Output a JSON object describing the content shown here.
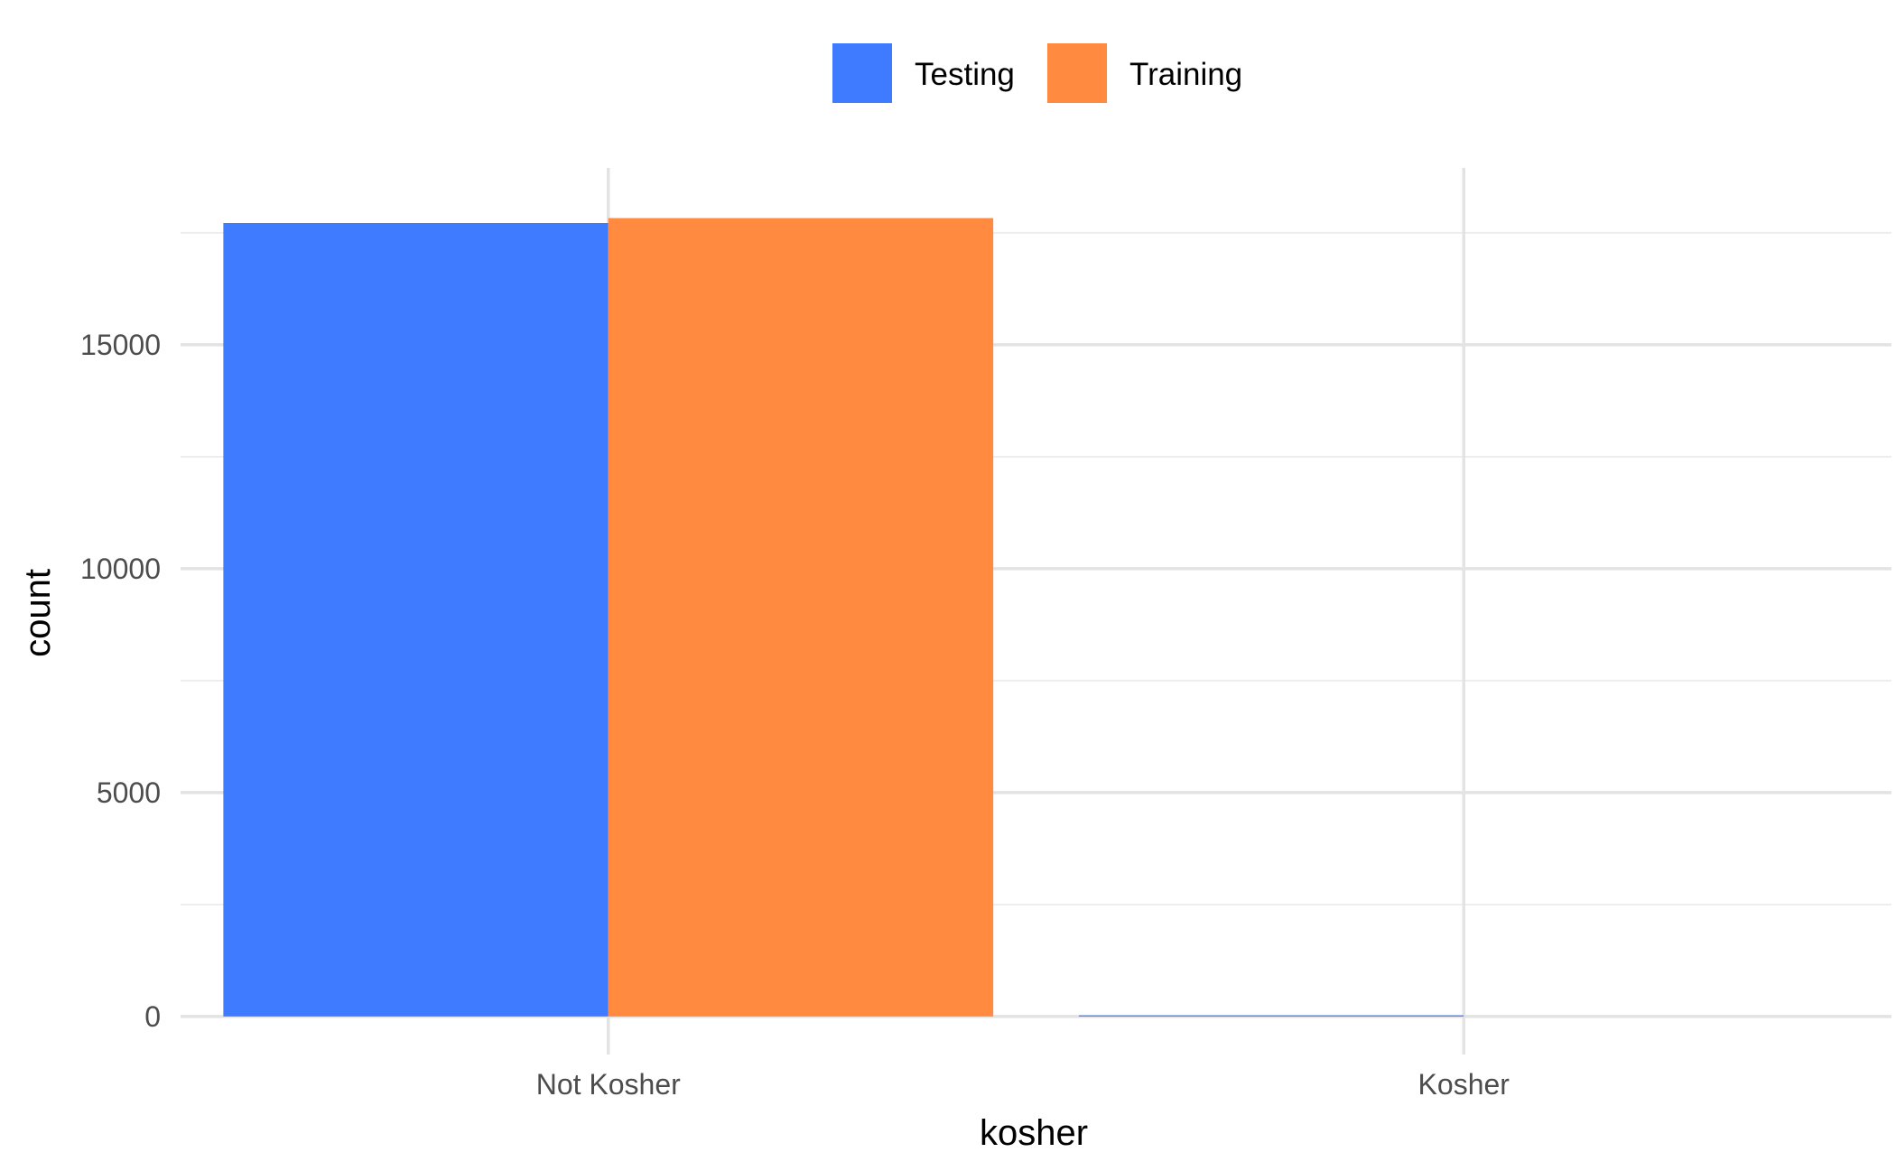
{
  "chart_data": {
    "type": "bar",
    "categories": [
      "Not Kosher",
      "Kosher"
    ],
    "series": [
      {
        "name": "Testing",
        "color": "#3f7bff",
        "values": [
          17720,
          25
        ]
      },
      {
        "name": "Training",
        "color": "#ff8a40",
        "values": [
          17830,
          0
        ]
      }
    ],
    "xlabel": "kosher",
    "ylabel": "count",
    "ylim": [
      -850,
      18950
    ],
    "yticks": [
      0,
      5000,
      10000,
      15000
    ],
    "yticks_minor": [
      2500,
      7500,
      12500,
      17500
    ],
    "grid": true,
    "legend": {
      "position": "top",
      "labels": [
        "Testing",
        "Training"
      ]
    }
  }
}
